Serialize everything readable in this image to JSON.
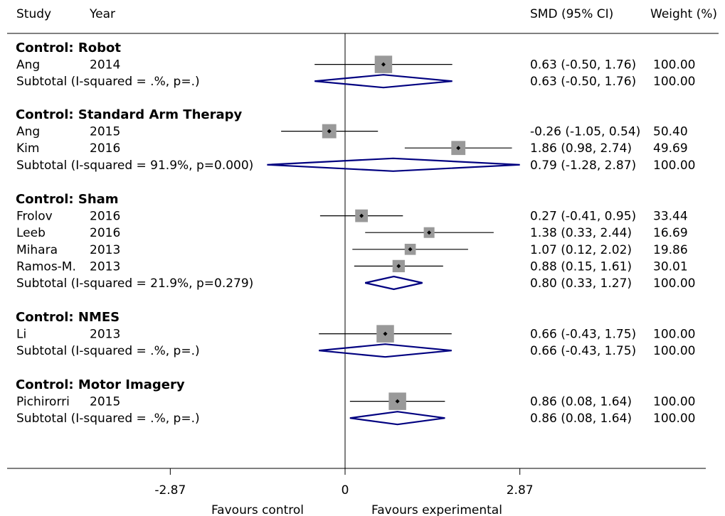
{
  "chart_data": {
    "type": "forest",
    "headers": {
      "study": "Study",
      "year": "Year",
      "effect": "SMD (95% CI)",
      "weight": "Weight (%)"
    },
    "x_axis": {
      "ticks": [
        {
          "value": -2.87,
          "label": "-2.87"
        },
        {
          "value": 0,
          "label": "0"
        },
        {
          "value": 2.87,
          "label": "2.87"
        }
      ],
      "label_left": "Favours control",
      "label_right": "Favours experimental"
    },
    "colors": {
      "box": "#999999",
      "diamond": "#000080",
      "line": "#000000"
    },
    "groups": [
      {
        "name": "Control: Robot",
        "studies": [
          {
            "study": "Ang",
            "year": "2014",
            "smd": 0.63,
            "lo": -0.5,
            "hi": 1.76,
            "weight": 100.0,
            "ci_text": "0.63 (-0.50, 1.76)",
            "weight_text": "100.00"
          }
        ],
        "subtotal": {
          "label": "Subtotal (I-squared = .%, p=.)",
          "smd": 0.63,
          "lo": -0.5,
          "hi": 1.76,
          "ci_text": "0.63 (-0.50, 1.76)",
          "weight_text": "100.00"
        }
      },
      {
        "name": "Control: Standard Arm Therapy",
        "studies": [
          {
            "study": "Ang",
            "year": "2015",
            "smd": -0.26,
            "lo": -1.05,
            "hi": 0.54,
            "weight": 50.4,
            "ci_text": "-0.26 (-1.05, 0.54)",
            "weight_text": "50.40"
          },
          {
            "study": "Kim",
            "year": "2016",
            "smd": 1.86,
            "lo": 0.98,
            "hi": 2.74,
            "weight": 49.69,
            "ci_text": "1.86 (0.98, 2.74)",
            "weight_text": "49.69"
          }
        ],
        "subtotal": {
          "label": "Subtotal (I-squared = 91.9%, p=0.000)",
          "smd": 0.79,
          "lo": -1.28,
          "hi": 2.87,
          "ci_text": "0.79 (-1.28, 2.87)",
          "weight_text": "100.00"
        }
      },
      {
        "name": "Control: Sham",
        "studies": [
          {
            "study": "Frolov",
            "year": "2016",
            "smd": 0.27,
            "lo": -0.41,
            "hi": 0.95,
            "weight": 33.44,
            "ci_text": "0.27 (-0.41, 0.95)",
            "weight_text": "33.44"
          },
          {
            "study": "Leeb",
            "year": "2016",
            "smd": 1.38,
            "lo": 0.33,
            "hi": 2.44,
            "weight": 16.69,
            "ci_text": "1.38 (0.33, 2.44)",
            "weight_text": "16.69"
          },
          {
            "study": "Mihara",
            "year": "2013",
            "smd": 1.07,
            "lo": 0.12,
            "hi": 2.02,
            "weight": 19.86,
            "ci_text": "1.07 (0.12, 2.02)",
            "weight_text": "19.86"
          },
          {
            "study": "Ramos-M.",
            "year": "2013",
            "smd": 0.88,
            "lo": 0.15,
            "hi": 1.61,
            "weight": 30.01,
            "ci_text": "0.88 (0.15, 1.61)",
            "weight_text": "30.01"
          }
        ],
        "subtotal": {
          "label": "Subtotal (I-squared = 21.9%, p=0.279)",
          "smd": 0.8,
          "lo": 0.33,
          "hi": 1.27,
          "ci_text": "0.80 (0.33, 1.27)",
          "weight_text": "100.00"
        }
      },
      {
        "name": "Control: NMES",
        "studies": [
          {
            "study": "Li",
            "year": "2013",
            "smd": 0.66,
            "lo": -0.43,
            "hi": 1.75,
            "weight": 100.0,
            "ci_text": "0.66 (-0.43, 1.75)",
            "weight_text": "100.00"
          }
        ],
        "subtotal": {
          "label": "Subtotal (I-squared = .%, p=.)",
          "smd": 0.66,
          "lo": -0.43,
          "hi": 1.75,
          "ci_text": "0.66 (-0.43, 1.75)",
          "weight_text": "100.00"
        }
      },
      {
        "name": "Control: Motor Imagery",
        "studies": [
          {
            "study": "Pichirorri",
            "year": "2015",
            "smd": 0.86,
            "lo": 0.08,
            "hi": 1.64,
            "weight": 100.0,
            "ci_text": "0.86 (0.08, 1.64)",
            "weight_text": "100.00"
          }
        ],
        "subtotal": {
          "label": "Subtotal (I-squared = .%, p=.)",
          "smd": 0.86,
          "lo": 0.08,
          "hi": 1.64,
          "ci_text": "0.86 (0.08, 1.64)",
          "weight_text": "100.00"
        }
      }
    ]
  }
}
